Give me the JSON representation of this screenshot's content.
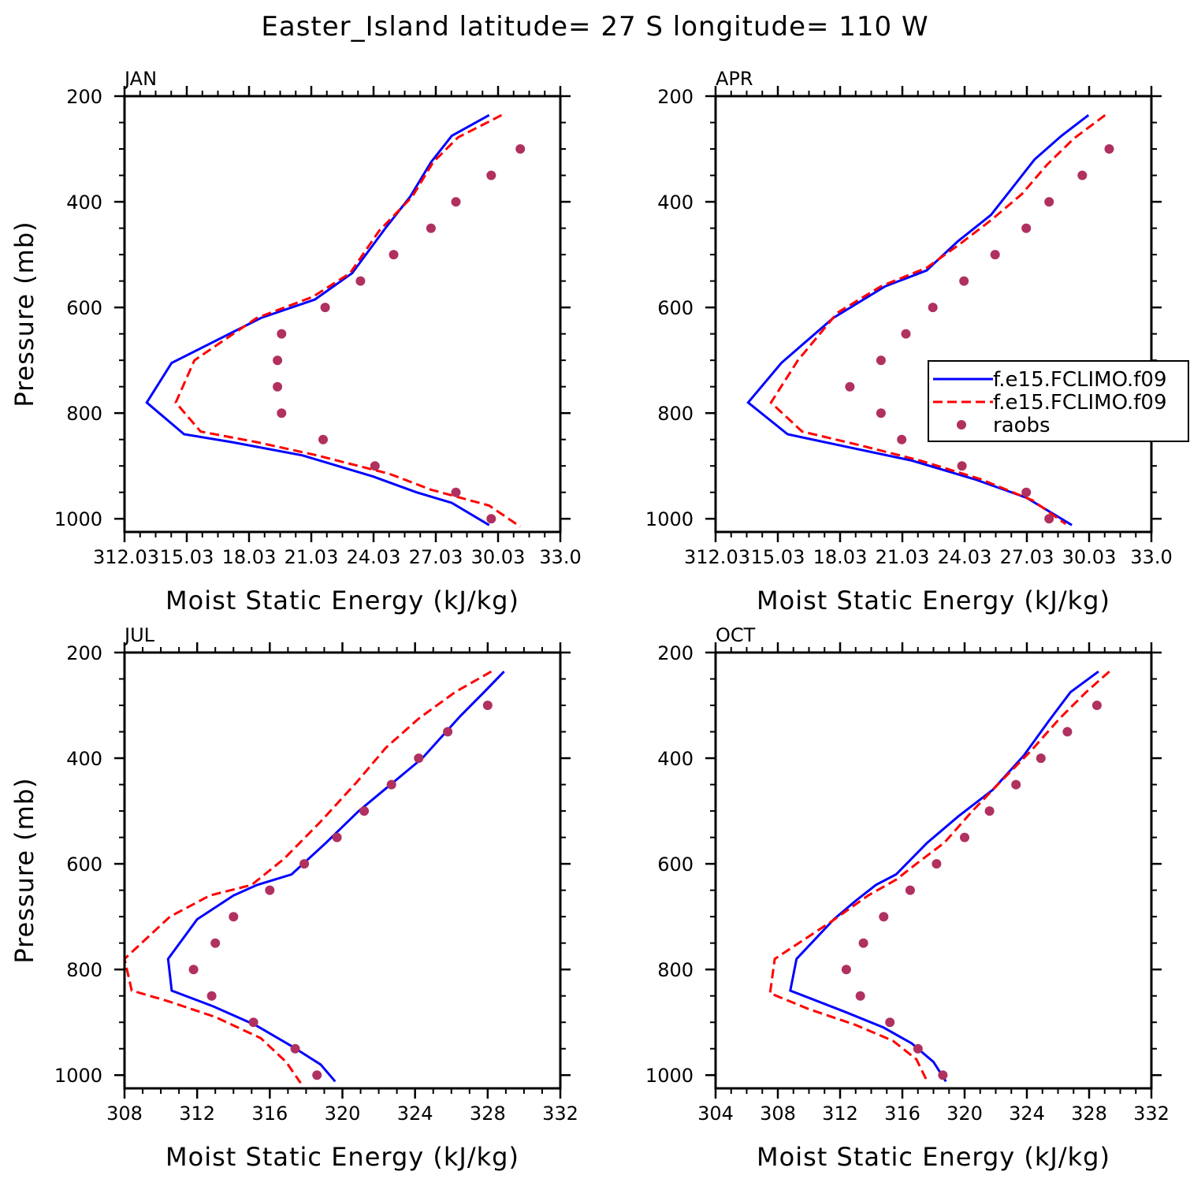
{
  "figure": {
    "title": "Easter_Island  latitude= 27 S longitude= 110 W"
  },
  "colors": {
    "model1": "#0000ff",
    "model2": "#ff0000",
    "raobs": "#b03060",
    "axis": "#000000"
  },
  "legend": {
    "panel": "APR",
    "entries": [
      {
        "label": "f.e15.FCLIMO.f09",
        "style": "solid",
        "color": "#0000ff"
      },
      {
        "label": "f.e15.FCLIMO.f09",
        "style": "dashed",
        "color": "#ff0000"
      },
      {
        "label": "raobs",
        "style": "marker",
        "color": "#b03060"
      }
    ]
  },
  "chart_data": [
    {
      "type": "line",
      "title": "JAN",
      "xlabel": "Moist Static Energy (kJ/kg)",
      "ylabel": "Pressure (mb)",
      "xlim": [
        312.03,
        333.03
      ],
      "ylim": [
        1025,
        200
      ],
      "xticks": [
        312.03,
        315.03,
        318.03,
        321.03,
        324.03,
        327.03,
        330.03,
        333.03
      ],
      "xtick_labels": [
        "312.03",
        "15.03",
        "18.03",
        "21.03",
        "24.03",
        "27.03",
        "30.03",
        "33.0"
      ],
      "yticks": [
        200,
        400,
        600,
        800,
        1000
      ],
      "ytick_labels": [
        "200",
        "400",
        "600",
        "800",
        "1000"
      ],
      "series": [
        {
          "name": "f.e15.FCLIMO.f09",
          "style": "solid",
          "x": [
            329.6,
            327.8,
            326.8,
            325.8,
            324.6,
            323.0,
            321.2,
            318.6,
            314.3,
            313.1,
            314.9,
            317.2,
            320.6,
            324.0,
            326.1,
            327.8,
            329.6
          ],
          "y": [
            236,
            275,
            325,
            390,
            450,
            535,
            585,
            620,
            705,
            780,
            840,
            855,
            880,
            920,
            950,
            970,
            1012
          ]
        },
        {
          "name": "f.e15.FCLIMO.f09",
          "style": "dashed",
          "x": [
            330.2,
            328.1,
            326.9,
            325.9,
            324.3,
            322.9,
            321.1,
            318.4,
            315.4,
            314.5,
            315.7,
            318.4,
            321.3,
            324.8,
            326.8,
            329.6,
            331.1
          ],
          "y": [
            236,
            278,
            325,
            390,
            455,
            535,
            580,
            620,
            700,
            780,
            835,
            855,
            880,
            915,
            945,
            975,
            1015
          ]
        },
        {
          "name": "raobs",
          "style": "marker",
          "x": [
            331.1,
            329.7,
            328.0,
            326.8,
            325.0,
            323.4,
            321.7,
            319.6,
            319.4,
            319.4,
            319.6,
            321.6,
            324.1,
            328.0,
            329.7
          ],
          "y": [
            300,
            350,
            400,
            450,
            500,
            550,
            600,
            650,
            700,
            750,
            800,
            850,
            900,
            950,
            1000
          ]
        }
      ]
    },
    {
      "type": "line",
      "title": "APR",
      "xlabel": "Moist Static Energy (kJ/kg)",
      "ylabel": "",
      "xlim": [
        312.03,
        333.03
      ],
      "ylim": [
        1025,
        200
      ],
      "xticks": [
        312.03,
        315.03,
        318.03,
        321.03,
        324.03,
        327.03,
        330.03,
        333.03
      ],
      "xtick_labels": [
        "312.03",
        "15.03",
        "18.03",
        "21.03",
        "24.03",
        "27.03",
        "30.03",
        "33.0"
      ],
      "yticks": [
        200,
        400,
        600,
        800,
        1000
      ],
      "ytick_labels": [
        "200",
        "400",
        "600",
        "800",
        "1000"
      ],
      "series": [
        {
          "name": "f.e15.FCLIMO.f09",
          "style": "solid",
          "x": [
            330.0,
            328.7,
            327.4,
            326.4,
            325.3,
            323.7,
            322.2,
            320.2,
            317.7,
            315.2,
            313.6,
            315.5,
            318.5,
            321.5,
            324.5,
            327.0,
            329.2
          ],
          "y": [
            236,
            275,
            320,
            370,
            425,
            475,
            530,
            560,
            620,
            705,
            780,
            840,
            865,
            890,
            925,
            960,
            1012
          ]
        },
        {
          "name": "f.e15.FCLIMO.f09",
          "style": "dashed",
          "x": [
            330.8,
            329.3,
            328.0,
            326.8,
            325.3,
            323.8,
            322.2,
            320.0,
            317.9,
            316.0,
            314.7,
            316.2,
            318.9,
            321.9,
            324.8,
            327.3,
            328.9
          ],
          "y": [
            236,
            280,
            330,
            385,
            435,
            480,
            525,
            560,
            610,
            700,
            780,
            835,
            860,
            890,
            925,
            965,
            1010
          ]
        },
        {
          "name": "raobs",
          "style": "marker",
          "x": [
            331.0,
            329.7,
            328.1,
            327.0,
            325.5,
            324.0,
            322.5,
            321.2,
            320.0,
            318.5,
            320.0,
            321.0,
            323.9,
            327.0,
            328.1
          ],
          "y": [
            300,
            350,
            400,
            450,
            500,
            550,
            600,
            650,
            700,
            750,
            800,
            850,
            900,
            950,
            1000
          ]
        }
      ]
    },
    {
      "type": "line",
      "title": "JUL",
      "xlabel": "Moist Static Energy (kJ/kg)",
      "ylabel": "Pressure (mb)",
      "xlim": [
        308,
        332
      ],
      "ylim": [
        1025,
        200
      ],
      "xticks": [
        308,
        312,
        316,
        320,
        324,
        328,
        332
      ],
      "xtick_labels": [
        "308",
        "312",
        "316",
        "320",
        "324",
        "328",
        "332"
      ],
      "yticks": [
        200,
        400,
        600,
        800,
        1000
      ],
      "ytick_labels": [
        "200",
        "400",
        "600",
        "800",
        "1000"
      ],
      "series": [
        {
          "name": "f.e15.FCLIMO.f09",
          "style": "solid",
          "x": [
            328.9,
            327.8,
            326.5,
            324.4,
            322.3,
            320.9,
            319.1,
            317.2,
            315.3,
            314.0,
            312.0,
            310.4,
            310.6,
            312.9,
            315.2,
            317.2,
            318.8,
            319.6
          ],
          "y": [
            236,
            275,
            320,
            400,
            460,
            500,
            560,
            620,
            640,
            660,
            705,
            780,
            840,
            870,
            905,
            945,
            980,
            1012
          ]
        },
        {
          "name": "f.e15.FCLIMO.f09",
          "style": "dashed",
          "x": [
            328.2,
            326.2,
            324.2,
            322.4,
            320.8,
            318.8,
            316.8,
            315.0,
            312.7,
            310.5,
            308.0,
            308.4,
            310.4,
            313.0,
            315.5,
            316.9,
            317.7
          ],
          "y": [
            236,
            275,
            325,
            380,
            445,
            520,
            590,
            640,
            660,
            700,
            780,
            840,
            860,
            890,
            930,
            975,
            1015
          ]
        },
        {
          "name": "raobs",
          "style": "marker",
          "x": [
            328.0,
            325.8,
            324.2,
            322.7,
            321.2,
            319.7,
            317.9,
            316.0,
            314.0,
            313.0,
            311.8,
            312.8,
            315.1,
            317.4,
            318.6
          ],
          "y": [
            300,
            350,
            400,
            450,
            500,
            550,
            600,
            650,
            700,
            750,
            800,
            850,
            900,
            950,
            1000
          ]
        }
      ]
    },
    {
      "type": "line",
      "title": "OCT",
      "xlabel": "Moist Static Energy (kJ/kg)",
      "ylabel": "",
      "xlim": [
        304,
        332
      ],
      "ylim": [
        1025,
        200
      ],
      "xticks": [
        304,
        308,
        312,
        316,
        320,
        324,
        328,
        332
      ],
      "xtick_labels": [
        "304",
        "308",
        "312",
        "316",
        "320",
        "324",
        "328",
        "332"
      ],
      "yticks": [
        200,
        400,
        600,
        800,
        1000
      ],
      "ytick_labels": [
        "200",
        "400",
        "600",
        "800",
        "1000"
      ],
      "series": [
        {
          "name": "f.e15.FCLIMO.f09",
          "style": "solid",
          "x": [
            328.6,
            326.8,
            325.4,
            323.8,
            321.8,
            319.6,
            317.6,
            315.6,
            314.3,
            313.0,
            311.6,
            309.2,
            308.8,
            312.3,
            314.8,
            316.6,
            318.0,
            318.8
          ],
          "y": [
            236,
            275,
            330,
            395,
            460,
            510,
            560,
            620,
            640,
            670,
            705,
            780,
            840,
            880,
            910,
            940,
            975,
            1012
          ]
        },
        {
          "name": "f.e15.FCLIMO.f09",
          "style": "dashed",
          "x": [
            329.3,
            327.8,
            326.1,
            324.3,
            322.3,
            320.5,
            318.7,
            316.9,
            315.6,
            313.8,
            311.4,
            307.8,
            307.5,
            310.0,
            313.0,
            315.4,
            316.9,
            317.6
          ],
          "y": [
            236,
            275,
            325,
            385,
            445,
            500,
            560,
            600,
            630,
            660,
            710,
            780,
            845,
            875,
            905,
            935,
            970,
            1012
          ]
        },
        {
          "name": "raobs",
          "style": "marker",
          "x": [
            328.5,
            326.6,
            324.9,
            323.3,
            321.6,
            320.0,
            318.2,
            316.5,
            314.8,
            313.5,
            312.4,
            313.3,
            315.2,
            317.0,
            318.6
          ],
          "y": [
            300,
            350,
            400,
            450,
            500,
            550,
            600,
            650,
            700,
            750,
            800,
            850,
            900,
            950,
            1000
          ]
        }
      ]
    }
  ]
}
